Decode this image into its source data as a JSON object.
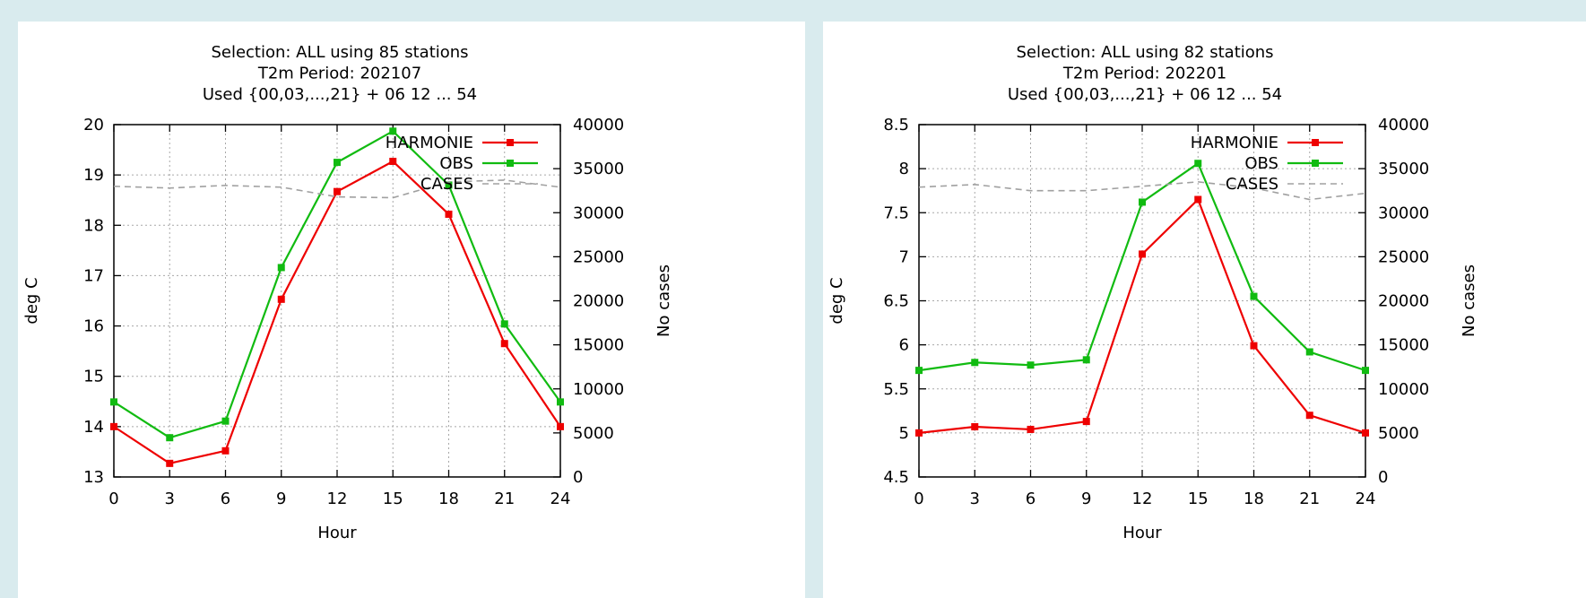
{
  "chart_data": [
    {
      "type": "line",
      "title": [
        "Selection: ALL using    85 stations",
        "T2m   Period:   202107",
        "Used {00,03,...,21} + 06 12 ... 54"
      ],
      "xlabel": "Hour",
      "ylabel": "deg C",
      "y2label": "No cases",
      "x": [
        0,
        3,
        6,
        9,
        12,
        15,
        18,
        21,
        24
      ],
      "xticks": [
        "0",
        "3",
        "6",
        "9",
        "12",
        "15",
        "18",
        "21",
        "24"
      ],
      "xlim": [
        0,
        24
      ],
      "ylim": [
        13,
        20
      ],
      "yticks": [
        "13",
        "14",
        "15",
        "16",
        "17",
        "18",
        "19",
        "20"
      ],
      "y2lim": [
        0,
        40000
      ],
      "y2ticks": [
        "0",
        "5000",
        "10000",
        "15000",
        "20000",
        "25000",
        "30000",
        "35000",
        "40000"
      ],
      "grid": true,
      "legend_position": "top-right",
      "series": [
        {
          "name": "HARMONIE",
          "color": "#ee0000",
          "axis": "left",
          "marker": true,
          "dashed": false,
          "values": [
            14.0,
            13.27,
            13.52,
            16.53,
            18.67,
            19.27,
            18.22,
            15.65,
            14.0
          ]
        },
        {
          "name": "OBS",
          "color": "#11bb11",
          "axis": "left",
          "marker": true,
          "dashed": false,
          "values": [
            14.49,
            13.78,
            14.11,
            17.16,
            19.25,
            19.87,
            18.8,
            16.04,
            14.49
          ]
        },
        {
          "name": "CASES",
          "color": "#a0a0a0",
          "axis": "right",
          "marker": false,
          "dashed": true,
          "values": [
            33000,
            32800,
            33100,
            32900,
            31800,
            31700,
            33500,
            33700,
            32900
          ]
        }
      ]
    },
    {
      "type": "line",
      "title": [
        "Selection: ALL using    82 stations",
        "T2m   Period:   202201",
        "Used {00,03,...,21} + 06 12 ... 54"
      ],
      "xlabel": "Hour",
      "ylabel": "deg C",
      "y2label": "No cases",
      "x": [
        0,
        3,
        6,
        9,
        12,
        15,
        18,
        21,
        24
      ],
      "xticks": [
        "0",
        "3",
        "6",
        "9",
        "12",
        "15",
        "18",
        "21",
        "24"
      ],
      "xlim": [
        0,
        24
      ],
      "ylim": [
        4.5,
        8.5
      ],
      "yticks": [
        "4.5",
        "5",
        "5.5",
        "6",
        "6.5",
        "7",
        "7.5",
        "8",
        "8.5"
      ],
      "y2lim": [
        0,
        40000
      ],
      "y2ticks": [
        "0",
        "5000",
        "10000",
        "15000",
        "20000",
        "25000",
        "30000",
        "35000",
        "40000"
      ],
      "grid": true,
      "legend_position": "top-right",
      "series": [
        {
          "name": "HARMONIE",
          "color": "#ee0000",
          "axis": "left",
          "marker": true,
          "dashed": false,
          "values": [
            5.0,
            5.07,
            5.04,
            5.13,
            7.03,
            7.65,
            5.99,
            5.2,
            5.0
          ]
        },
        {
          "name": "OBS",
          "color": "#11bb11",
          "axis": "left",
          "marker": true,
          "dashed": false,
          "values": [
            5.71,
            5.8,
            5.77,
            5.83,
            7.62,
            8.06,
            6.55,
            5.92,
            5.71
          ]
        },
        {
          "name": "CASES",
          "color": "#a0a0a0",
          "axis": "right",
          "marker": false,
          "dashed": true,
          "values": [
            32900,
            33200,
            32500,
            32500,
            33000,
            33500,
            32800,
            31500,
            32200
          ]
        }
      ]
    }
  ]
}
